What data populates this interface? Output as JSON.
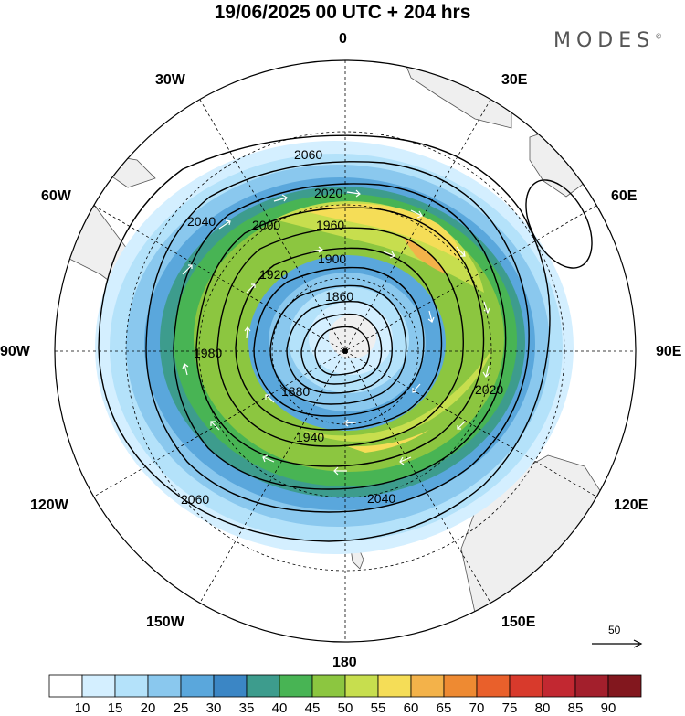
{
  "title": "19/06/2025  00 UTC  + 204 hrs",
  "brand": "MODES",
  "brand_mark": "©",
  "longitude_labels": {
    "top": "0",
    "top_right": "30E",
    "right_upper": "60E",
    "right": "90E",
    "right_lower": "120E",
    "bottom_right": "150E",
    "bottom": "180",
    "bottom_left": "150W",
    "left_lower": "120W",
    "left": "90W",
    "left_upper": "60W",
    "top_left": "30W"
  },
  "contour_labels": [
    "2060",
    "2020",
    "1960",
    "1900",
    "1860",
    "2040",
    "2000",
    "1920",
    "1980",
    "1880",
    "1940",
    "2060",
    "2040",
    "2020"
  ],
  "colorbar": {
    "ticks": [
      "10",
      "15",
      "20",
      "25",
      "30",
      "35",
      "40",
      "45",
      "50",
      "55",
      "60",
      "65",
      "70",
      "75",
      "80",
      "85",
      "90"
    ],
    "colors": [
      "#ffffff",
      "#d4efff",
      "#b4e2fa",
      "#8ac8ee",
      "#5aa7dc",
      "#3b86c5",
      "#3d9c8d",
      "#48b454",
      "#8cc640",
      "#c7de4e",
      "#f5dd57",
      "#f3b24a",
      "#ee8a32",
      "#e9602b",
      "#d83a2c",
      "#c22831",
      "#a31f2c",
      "#82171e"
    ]
  },
  "reference_vector": "50",
  "colors": {
    "land": "#efefef",
    "coastline": "#555555",
    "contour": "#000000"
  }
}
